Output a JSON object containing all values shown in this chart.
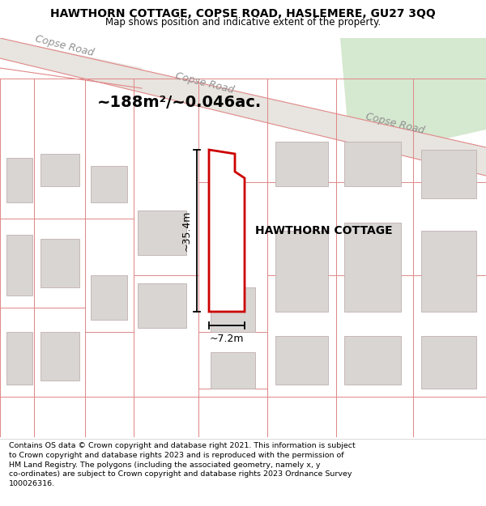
{
  "title": "HAWTHORN COTTAGE, COPSE ROAD, HASLEMERE, GU27 3QQ",
  "subtitle": "Map shows position and indicative extent of the property.",
  "footer": "Contains OS data © Crown copyright and database right 2021. This information is subject to Crown copyright and database rights 2023 and is reproduced with the permission of HM Land Registry. The polygons (including the associated geometry, namely x, y co-ordinates) are subject to Crown copyright and database rights 2023 Ordnance Survey 100026316.",
  "bg_color": "#f2ede8",
  "road_fill": "#e8e4df",
  "road_edge": "#c8b8b8",
  "building_fill": "#d8d5d2",
  "building_edge": "#c0b0b0",
  "prop_outline_color": "#e08888",
  "highlight_fill": "#ffffff",
  "highlight_edge": "#cc0000",
  "green_area_fill": "#d5e8d0",
  "road_label_color": "#909090",
  "area_label": "~188m²/~0.046ac.",
  "property_label": "HAWTHORN COTTAGE",
  "dim_width_label": "~7.2m",
  "dim_height_label": "~35.4m",
  "title_fontsize": 10,
  "subtitle_fontsize": 8.5,
  "footer_fontsize": 6.8,
  "road_label_fontsize": 9
}
